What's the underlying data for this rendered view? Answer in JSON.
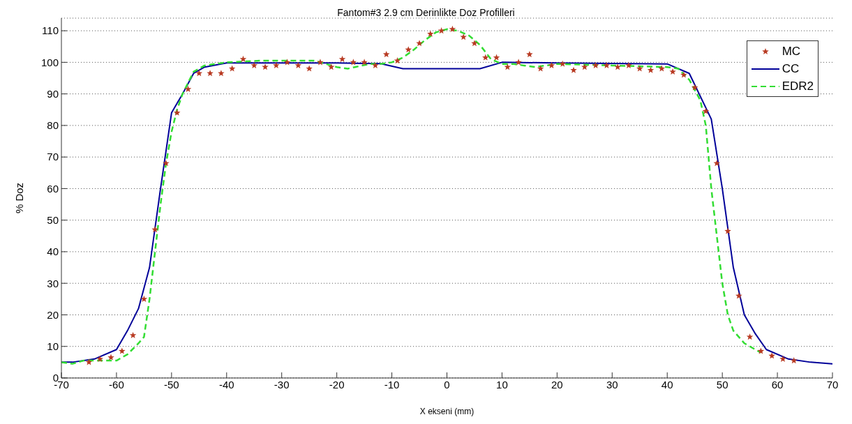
{
  "chart_data": {
    "type": "line",
    "title": "Fantom#3 2.9 cm Derinlikte Doz Profilleri",
    "xlabel": "X ekseni  (mm)",
    "ylabel": "% Doz",
    "xlim": [
      -70,
      70
    ],
    "xticks": [
      -70,
      -60,
      -50,
      -40,
      -30,
      -20,
      -10,
      0,
      10,
      20,
      30,
      40,
      50,
      60,
      70
    ],
    "ylim": [
      0,
      114
    ],
    "yticks": [
      0,
      10,
      20,
      30,
      40,
      50,
      60,
      70,
      80,
      90,
      100,
      110
    ],
    "grid": "y",
    "legend": "top right",
    "series": [
      {
        "name": "MC",
        "type": "scatter",
        "marker": "star",
        "color": "#b83a22",
        "x": [
          -65,
          -63,
          -61,
          -59,
          -57,
          -55,
          -53,
          -51,
          -49,
          -47,
          -45,
          -43,
          -41,
          -39,
          -37,
          -35,
          -33,
          -31,
          -29,
          -27,
          -25,
          -23,
          -21,
          -19,
          -17,
          -15,
          -13,
          -11,
          -9,
          -7,
          -5,
          -3,
          -1,
          1,
          3,
          5,
          7,
          9,
          11,
          13,
          15,
          17,
          19,
          21,
          23,
          25,
          27,
          29,
          31,
          33,
          35,
          37,
          39,
          41,
          43,
          45,
          47,
          49,
          51,
          53,
          55,
          57,
          59,
          61,
          63
        ],
        "values": [
          5,
          6,
          6.5,
          8.5,
          13.5,
          25,
          47,
          68,
          84,
          91.5,
          96.5,
          96.5,
          96.5,
          98,
          101,
          99,
          98.5,
          99,
          100,
          99,
          98,
          100,
          98.5,
          101,
          100,
          100,
          99,
          102.5,
          100.5,
          104,
          106,
          109,
          110,
          110.5,
          108,
          106,
          101.5,
          101.5,
          98.5,
          100,
          102.5,
          98,
          99,
          99.5,
          97.5,
          98.5,
          99,
          99,
          98.5,
          99,
          98,
          97.5,
          98,
          97,
          96,
          92,
          84.5,
          68,
          46.5,
          26,
          13,
          8.5,
          7,
          6,
          5.5
        ]
      },
      {
        "name": "CC",
        "marker": "none",
        "line_style": "solid",
        "color": "#000099",
        "x": [
          -70,
          -68,
          -64,
          -60,
          -58,
          -56,
          -54,
          -52,
          -50,
          -48,
          -46,
          -44,
          -40,
          -20,
          -12,
          -8,
          6,
          10,
          20,
          40,
          44,
          48,
          50,
          52,
          54,
          56,
          58,
          62,
          66,
          70
        ],
        "values": [
          5,
          5,
          6,
          9,
          15,
          22,
          35,
          60,
          84,
          90,
          96.5,
          98.5,
          99.8,
          99.8,
          99.6,
          98,
          98,
          100,
          99.8,
          99.5,
          96.5,
          82,
          60,
          35,
          20,
          14,
          9,
          6,
          5,
          4.5
        ]
      },
      {
        "name": "EDR2",
        "marker": "none",
        "line_style": "dashed",
        "color": "#33dd33",
        "x": [
          -70,
          -68,
          -66,
          -62,
          -60,
          -58,
          -56,
          -55,
          -54,
          -53,
          -52,
          -51,
          -50,
          -49,
          -48,
          -46,
          -44,
          -40,
          -34,
          -30,
          -24,
          -20,
          -18,
          -14,
          -12,
          -10,
          -8,
          -6,
          -4,
          -2,
          0,
          2,
          4,
          6,
          8,
          10,
          12,
          14,
          16,
          20,
          30,
          40,
          42,
          44,
          46,
          47,
          48,
          49,
          50,
          51,
          52,
          54,
          56,
          57
        ],
        "values": [
          5,
          4.5,
          5.5,
          5.5,
          5.5,
          7.5,
          11,
          13,
          25,
          40,
          55,
          68,
          78,
          85,
          90,
          97,
          99,
          100,
          100.5,
          100.5,
          100.5,
          98.5,
          98,
          99.5,
          99.5,
          100,
          101.5,
          104,
          107,
          109.5,
          110.5,
          110,
          108.5,
          105.5,
          101,
          99.5,
          99.5,
          99,
          98.5,
          99.5,
          99,
          98.5,
          98,
          94.5,
          88,
          80,
          60,
          45,
          30,
          20,
          15,
          11,
          9,
          8
        ]
      }
    ]
  }
}
